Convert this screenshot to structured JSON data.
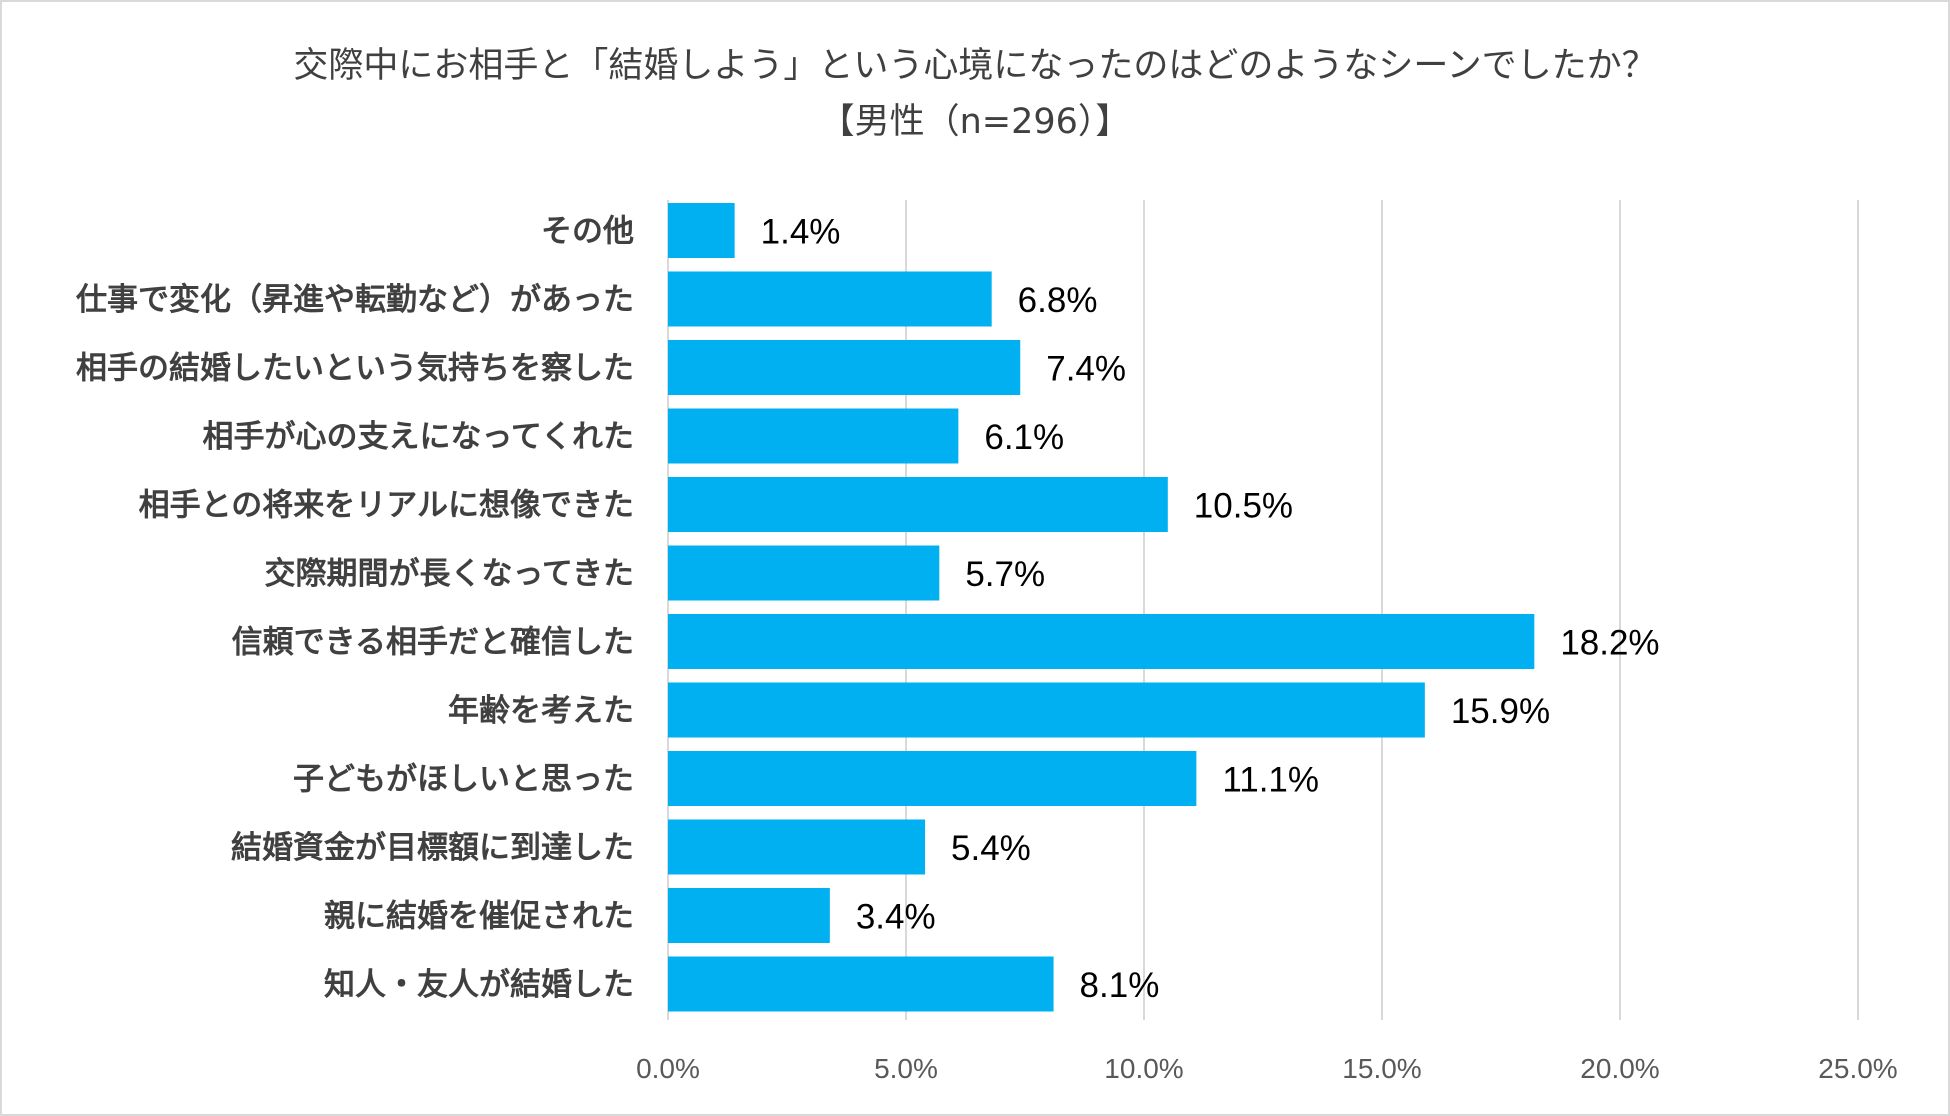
{
  "chart_data": {
    "type": "bar",
    "orientation": "horizontal",
    "title": "交際中にお相手と「結婚しよう」という心境になったのはどのようなシーンでしたか？",
    "subtitle": "【男性（n=296）】",
    "categories": [
      "その他",
      "仕事で変化（昇進や転勤など）があった",
      "相手の結婚したいという気持ちを察した",
      "相手が心の支えになってくれた",
      "相手との将来をリアルに想像できた",
      "交際期間が長くなってきた",
      "信頼できる相手だと確信した",
      "年齢を考えた",
      "子どもがほしいと思った",
      "結婚資金が目標額に到達した",
      "親に結婚を催促された",
      "知人・友人が結婚した"
    ],
    "values": [
      1.4,
      6.8,
      7.4,
      6.1,
      10.5,
      5.7,
      18.2,
      15.9,
      11.1,
      5.4,
      3.4,
      8.1
    ],
    "value_labels": [
      "1.4%",
      "6.8%",
      "7.4%",
      "6.1%",
      "10.5%",
      "5.7%",
      "18.2%",
      "15.9%",
      "11.1%",
      "5.4%",
      "3.4%",
      "8.1%"
    ],
    "xlim": [
      0,
      25
    ],
    "xticks": [
      0,
      5,
      10,
      15,
      20,
      25
    ],
    "xtick_labels": [
      "0.0%",
      "5.0%",
      "10.0%",
      "15.0%",
      "20.0%",
      "25.0%"
    ],
    "xlabel": "",
    "ylabel": "",
    "grid": true,
    "bar_color": "#00b0f0",
    "grid_color": "#d9d9d9"
  }
}
